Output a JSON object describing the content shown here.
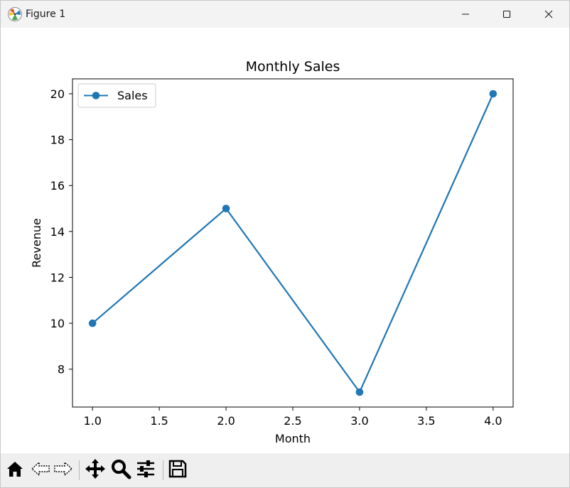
{
  "window": {
    "title": "Figure 1"
  },
  "toolbar": {
    "buttons": [
      "home-icon",
      "back-icon",
      "forward-icon",
      "pan-icon",
      "zoom-icon",
      "configure-icon",
      "save-icon"
    ]
  },
  "colors": {
    "series": "#1f77b4",
    "toolbar_bg": "#efefef",
    "titlebar_bg": "#f3f3f3"
  },
  "chart_data": {
    "type": "line",
    "title": "Monthly Sales",
    "xlabel": "Month",
    "ylabel": "Revenue",
    "x": [
      1.0,
      2.0,
      3.0,
      4.0
    ],
    "series": [
      {
        "name": "Sales",
        "values": [
          10,
          15,
          7,
          20
        ],
        "marker": "circle",
        "color": "#1f77b4"
      }
    ],
    "xlim": [
      0.85,
      4.15
    ],
    "ylim": [
      6.35,
      20.65
    ],
    "xticks": [
      1.0,
      1.5,
      2.0,
      2.5,
      3.0,
      3.5,
      4.0
    ],
    "xtick_labels": [
      "1.0",
      "1.5",
      "2.0",
      "2.5",
      "3.0",
      "3.5",
      "4.0"
    ],
    "yticks": [
      8,
      10,
      12,
      14,
      16,
      18,
      20
    ],
    "ytick_labels": [
      "8",
      "10",
      "12",
      "14",
      "16",
      "18",
      "20"
    ],
    "legend": {
      "position": "upper left",
      "entries": [
        "Sales"
      ]
    },
    "grid": false
  }
}
